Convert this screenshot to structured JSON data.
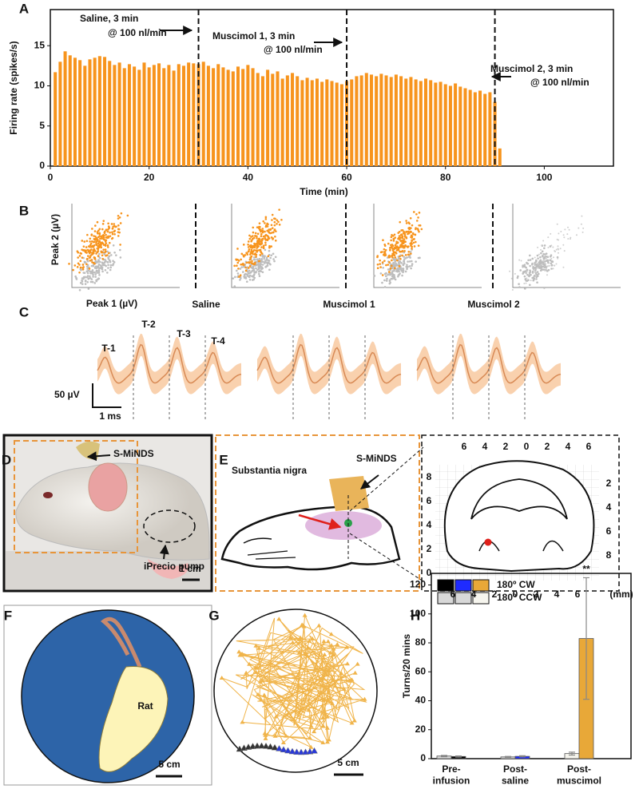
{
  "panel_labels": [
    "A",
    "B",
    "C",
    "D",
    "E",
    "F",
    "G",
    "H"
  ],
  "chart_data": [
    {
      "type": "bar",
      "x": [
        1,
        2,
        3,
        4,
        5,
        6,
        7,
        8,
        9,
        10,
        11,
        12,
        13,
        14,
        15,
        16,
        17,
        18,
        19,
        20,
        21,
        22,
        23,
        24,
        25,
        26,
        27,
        28,
        29,
        30,
        31,
        32,
        33,
        34,
        35,
        36,
        37,
        38,
        39,
        40,
        41,
        42,
        43,
        44,
        45,
        46,
        47,
        48,
        49,
        50,
        51,
        52,
        53,
        54,
        55,
        56,
        57,
        58,
        59,
        60,
        61,
        62,
        63,
        64,
        65,
        66,
        67,
        68,
        69,
        70,
        71,
        72,
        73,
        74,
        75,
        76,
        77,
        78,
        79,
        80,
        81,
        82,
        83,
        84,
        85,
        86,
        87,
        88,
        89,
        90,
        91
      ],
      "values": [
        11.7,
        13.0,
        14.3,
        13.8,
        13.5,
        13.2,
        12.5,
        13.3,
        13.5,
        13.7,
        13.6,
        13.1,
        12.6,
        12.9,
        12.2,
        12.7,
        12.4,
        12.0,
        12.9,
        12.3,
        12.6,
        12.8,
        12.2,
        12.6,
        11.9,
        12.7,
        12.5,
        12.9,
        12.8,
        12.7,
        13.0,
        12.5,
        12.2,
        12.7,
        12.3,
        12.0,
        11.8,
        12.4,
        12.1,
        12.6,
        12.2,
        11.6,
        11.2,
        12.0,
        11.5,
        11.8,
        10.9,
        11.3,
        11.6,
        11.2,
        10.7,
        11.0,
        10.7,
        10.9,
        10.5,
        10.8,
        10.6,
        10.4,
        10.2,
        10.6,
        10.8,
        11.2,
        11.3,
        11.6,
        11.4,
        11.2,
        11.5,
        11.3,
        11.1,
        11.4,
        11.2,
        10.9,
        11.1,
        10.8,
        10.6,
        10.9,
        10.7,
        10.4,
        10.5,
        10.2,
        10.0,
        10.3,
        9.9,
        9.7,
        9.5,
        9.2,
        9.4,
        9.0,
        9.2,
        8.0,
        2.2
      ],
      "color": "#f7941d",
      "xlim": [
        0,
        114
      ],
      "ylim": [
        0,
        19.5
      ],
      "xticks": [
        0,
        20,
        40,
        60,
        80,
        100
      ],
      "yticks": [
        0,
        5,
        10,
        15
      ],
      "xlabel": "Time (min)",
      "ylabel": "Firing rate (spikes/s)",
      "vlines": [
        30,
        60,
        90
      ],
      "annotations": [
        "Saline, 3 min",
        "@ 100 nl/min",
        "Muscimol 1, 3 min",
        "@ 100 nl/min",
        "Muscimol 2, 3 min",
        "@ 100 nl/min"
      ]
    },
    {
      "type": "grouped_bar",
      "categories": [
        "Pre-\ninfusion",
        "Post-\nsaline",
        "Post-\nmuscimol"
      ],
      "series": [
        {
          "name": "180º CW",
          "colors": [
            "#000000",
            "#1f2bff",
            "#e8a838"
          ],
          "values": [
            1.5,
            1.6,
            83
          ],
          "errors": [
            0.4,
            0.4,
            42
          ]
        },
        {
          "name": "180º CCW",
          "colors": [
            "#d8d8d8",
            "#d8d8d8",
            "#f6f5ee"
          ],
          "values": [
            1.8,
            1.2,
            3.5
          ],
          "errors": [
            0.4,
            0.3,
            1.0
          ]
        }
      ],
      "ylim": [
        0,
        128
      ],
      "yticks": [
        0,
        20,
        40,
        60,
        80,
        100,
        120
      ],
      "ylabel": "Turns/20 mins",
      "annotations": [
        "**"
      ]
    }
  ],
  "panel_b": {
    "ylabel": "Peak 2 (µV)",
    "xlabel": "Peak 1 (µV)",
    "conditions": [
      "Saline",
      "Muscimol 1",
      "Muscimol 2"
    ]
  },
  "panel_c": {
    "tetrodes": [
      "T-1",
      "T-2",
      "T-3",
      "T-4"
    ],
    "scale_y": "50 µV",
    "scale_x": "1 ms"
  },
  "panel_d": {
    "labels": [
      "S-MiNDS",
      "iPrecio pump"
    ],
    "scale": "1 cm"
  },
  "panel_e": {
    "labels": [
      "Substantia nigra",
      "S-MiNDS"
    ],
    "top_ticks": [
      "6",
      "4",
      "2",
      "0",
      "2",
      "4",
      "6"
    ],
    "bottom_ticks": [
      "6",
      "4",
      "2",
      "0",
      "2",
      "4",
      "6"
    ],
    "left_ticks": [
      "8",
      "6",
      "4",
      "2",
      "0"
    ],
    "right_ticks": [
      "2",
      "4",
      "6",
      "8"
    ],
    "unit": "(mm)"
  },
  "panel_f": {
    "label": "Rat",
    "scale": "5 cm"
  },
  "panel_g": {
    "scale": "5 cm"
  }
}
